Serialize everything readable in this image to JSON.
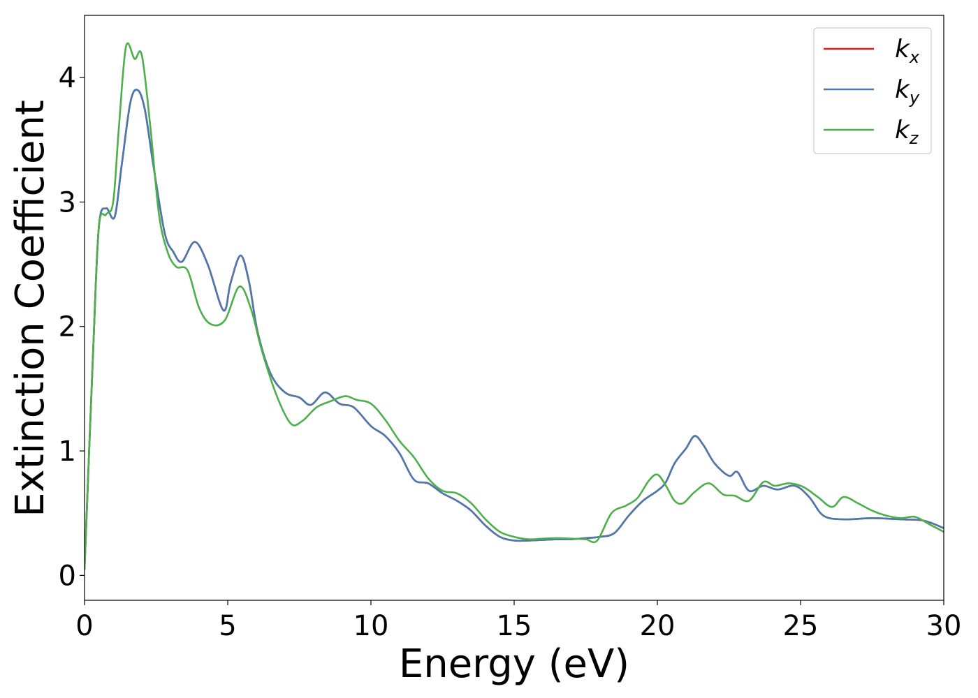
{
  "chart_data": {
    "type": "line",
    "xlabel": "Energy (eV)",
    "ylabel": "Extinction Coefficient",
    "xlim": [
      0,
      30
    ],
    "ylim": [
      -0.2,
      4.5
    ],
    "xticks": [
      0,
      5,
      10,
      15,
      20,
      25,
      30
    ],
    "yticks": [
      0,
      1,
      2,
      3,
      4
    ],
    "grid": false,
    "legend_position": "top-right",
    "series": [
      {
        "name": "k",
        "subscript": "x",
        "color": "#e41a1c",
        "x": [
          0,
          0.3,
          0.5,
          0.75,
          1.05,
          1.3,
          1.6,
          1.85,
          2.1,
          2.4,
          2.8,
          3.1,
          3.4,
          3.85,
          4.3,
          4.85,
          5.1,
          5.45,
          5.75,
          6.05,
          6.5,
          7.0,
          7.5,
          7.9,
          8.4,
          8.9,
          9.4,
          10.0,
          10.5,
          11.0,
          11.5,
          12.0,
          12.5,
          13.0,
          13.5,
          14.0,
          14.5,
          15.0,
          15.5,
          16.0,
          16.5,
          17.0,
          17.5,
          18.0,
          18.5,
          19.0,
          19.5,
          20.0,
          20.3,
          20.6,
          21.0,
          21.3,
          21.6,
          22.0,
          22.5,
          22.8,
          23.2,
          23.7,
          24.2,
          24.8,
          25.3,
          25.8,
          26.5,
          27.5,
          28.5,
          29.3,
          30.0
        ],
        "values": [
          0.05,
          1.8,
          2.8,
          2.95,
          2.88,
          3.3,
          3.8,
          3.9,
          3.75,
          3.3,
          2.75,
          2.6,
          2.52,
          2.68,
          2.5,
          2.13,
          2.35,
          2.57,
          2.35,
          1.95,
          1.62,
          1.47,
          1.43,
          1.37,
          1.47,
          1.38,
          1.35,
          1.2,
          1.12,
          0.98,
          0.77,
          0.74,
          0.66,
          0.6,
          0.52,
          0.4,
          0.31,
          0.28,
          0.28,
          0.285,
          0.29,
          0.29,
          0.3,
          0.31,
          0.34,
          0.48,
          0.6,
          0.68,
          0.75,
          0.9,
          1.02,
          1.12,
          1.05,
          0.9,
          0.8,
          0.83,
          0.68,
          0.72,
          0.69,
          0.72,
          0.63,
          0.48,
          0.45,
          0.46,
          0.45,
          0.44,
          0.38
        ]
      },
      {
        "name": "k",
        "subscript": "y",
        "color": "#4a78b0",
        "x": [
          0,
          0.3,
          0.5,
          0.75,
          1.05,
          1.3,
          1.6,
          1.85,
          2.1,
          2.4,
          2.8,
          3.1,
          3.4,
          3.85,
          4.3,
          4.85,
          5.1,
          5.45,
          5.75,
          6.05,
          6.5,
          7.0,
          7.5,
          7.9,
          8.4,
          8.9,
          9.4,
          10.0,
          10.5,
          11.0,
          11.5,
          12.0,
          12.5,
          13.0,
          13.5,
          14.0,
          14.5,
          15.0,
          15.5,
          16.0,
          16.5,
          17.0,
          17.5,
          18.0,
          18.5,
          19.0,
          19.5,
          20.0,
          20.3,
          20.6,
          21.0,
          21.3,
          21.6,
          22.0,
          22.5,
          22.8,
          23.2,
          23.7,
          24.2,
          24.8,
          25.3,
          25.8,
          26.5,
          27.5,
          28.5,
          29.3,
          30.0
        ],
        "values": [
          0.05,
          1.8,
          2.8,
          2.95,
          2.88,
          3.3,
          3.8,
          3.9,
          3.75,
          3.3,
          2.75,
          2.6,
          2.52,
          2.68,
          2.5,
          2.13,
          2.35,
          2.57,
          2.35,
          1.95,
          1.62,
          1.47,
          1.43,
          1.37,
          1.47,
          1.38,
          1.35,
          1.2,
          1.12,
          0.98,
          0.77,
          0.74,
          0.66,
          0.6,
          0.52,
          0.4,
          0.31,
          0.28,
          0.28,
          0.285,
          0.29,
          0.29,
          0.3,
          0.31,
          0.34,
          0.48,
          0.6,
          0.68,
          0.75,
          0.9,
          1.02,
          1.12,
          1.05,
          0.9,
          0.8,
          0.83,
          0.68,
          0.72,
          0.69,
          0.72,
          0.63,
          0.48,
          0.45,
          0.46,
          0.45,
          0.44,
          0.38
        ]
      },
      {
        "name": "k",
        "subscript": "z",
        "color": "#4daf4a",
        "x": [
          0,
          0.3,
          0.5,
          0.75,
          1.0,
          1.2,
          1.45,
          1.75,
          2.0,
          2.3,
          2.6,
          2.9,
          3.2,
          3.6,
          4.0,
          4.4,
          4.9,
          5.4,
          5.8,
          6.2,
          6.7,
          7.2,
          7.6,
          8.1,
          8.6,
          9.1,
          9.5,
          10.0,
          10.5,
          11.0,
          11.5,
          12.0,
          12.5,
          13.0,
          13.5,
          14.0,
          14.5,
          15.0,
          15.5,
          16.0,
          16.5,
          17.0,
          17.5,
          17.9,
          18.4,
          18.9,
          19.3,
          19.7,
          20.0,
          20.3,
          20.6,
          20.9,
          21.3,
          21.8,
          22.3,
          22.7,
          23.2,
          23.7,
          24.1,
          24.6,
          25.1,
          25.6,
          26.1,
          26.5,
          27.0,
          27.5,
          28.0,
          28.5,
          29.0,
          29.5,
          30.0
        ],
        "values": [
          0.05,
          1.8,
          2.8,
          2.9,
          3.0,
          3.6,
          4.25,
          4.15,
          4.18,
          3.6,
          2.9,
          2.6,
          2.48,
          2.45,
          2.15,
          2.02,
          2.05,
          2.32,
          2.15,
          1.8,
          1.45,
          1.22,
          1.24,
          1.35,
          1.4,
          1.44,
          1.41,
          1.38,
          1.25,
          1.08,
          0.95,
          0.78,
          0.68,
          0.66,
          0.58,
          0.45,
          0.35,
          0.31,
          0.29,
          0.295,
          0.3,
          0.295,
          0.29,
          0.28,
          0.5,
          0.56,
          0.62,
          0.76,
          0.81,
          0.72,
          0.6,
          0.58,
          0.67,
          0.74,
          0.65,
          0.64,
          0.6,
          0.75,
          0.72,
          0.74,
          0.71,
          0.63,
          0.55,
          0.63,
          0.58,
          0.52,
          0.48,
          0.46,
          0.47,
          0.41,
          0.35
        ]
      }
    ]
  }
}
